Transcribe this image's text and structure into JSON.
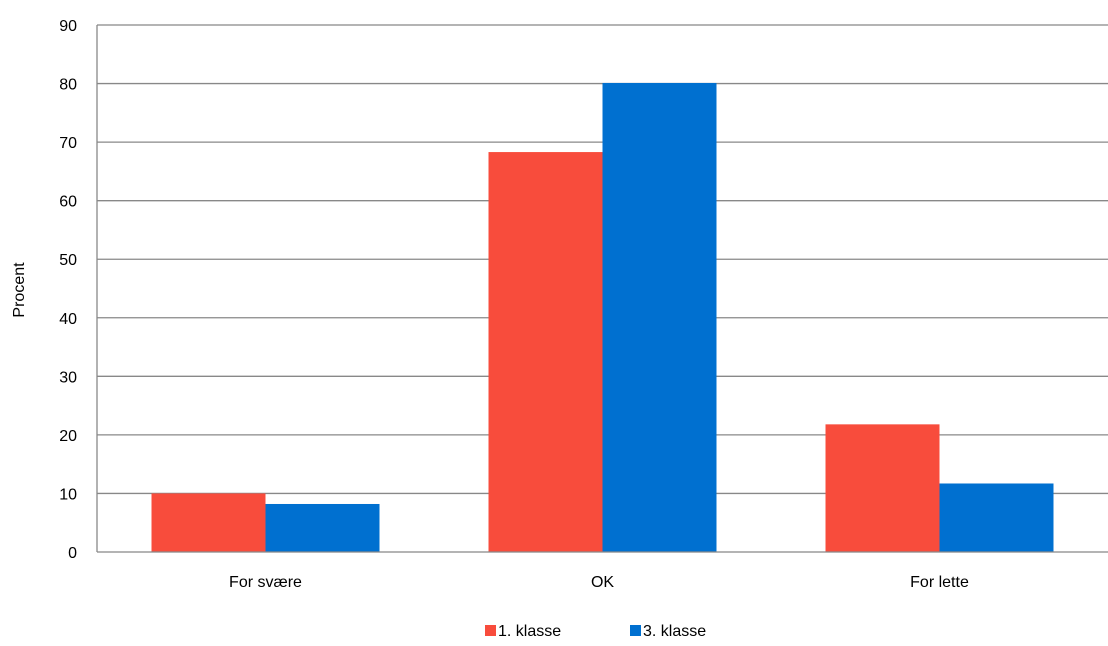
{
  "chart_data": {
    "type": "bar",
    "categories": [
      "For svære",
      "OK",
      "For lette"
    ],
    "series": [
      {
        "name": "1. klasse",
        "values": [
          10,
          68.3,
          21.8
        ],
        "color": "#f84c3c"
      },
      {
        "name": "3. klasse",
        "values": [
          8.2,
          80.1,
          11.7
        ],
        "color": "#0070d0"
      }
    ],
    "title": "",
    "xlabel": "",
    "ylabel": "Procent",
    "ylim": [
      0,
      90
    ],
    "yticks": [
      "0",
      "10",
      "20",
      "30",
      "40",
      "50",
      "60",
      "70",
      "80",
      "90"
    ],
    "grid": true,
    "legend_position": "bottom",
    "axis_color": "#888888"
  }
}
